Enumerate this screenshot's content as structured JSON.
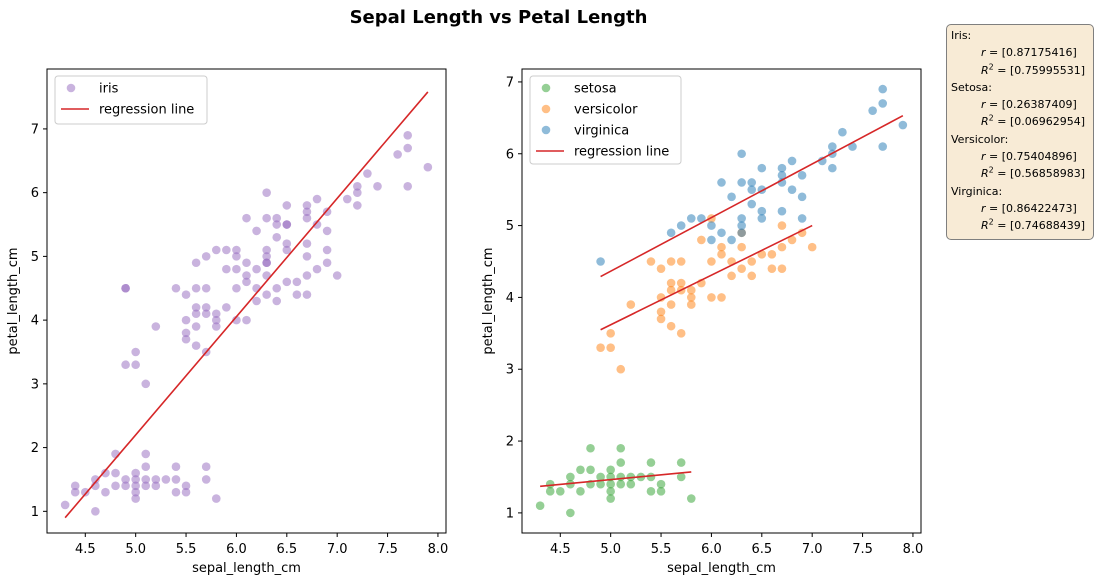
{
  "figure": {
    "title": "Sepal Length vs Petal Length"
  },
  "colors": {
    "iris": "#9467bd",
    "setosa": "#2ca02c",
    "versicolor": "#ff7f0e",
    "virginica": "#1f77b4",
    "regression": "#d62728",
    "stats_box_bg": "#f8ebd6"
  },
  "chart_data": [
    {
      "type": "scatter",
      "title": "",
      "xlabel": "sepal_length_cm",
      "ylabel": "petal_length_cm",
      "xlim": [
        4.12,
        8.08
      ],
      "ylim": [
        0.66,
        7.94
      ],
      "xticks": [
        "4.5",
        "5.0",
        "5.5",
        "6.0",
        "6.5",
        "7.0",
        "7.5",
        "8.0"
      ],
      "yticks": [
        "1",
        "2",
        "3",
        "4",
        "5",
        "6",
        "7"
      ],
      "legend_position": "upper-left",
      "legend": [
        "iris",
        "regression line"
      ],
      "series": [
        {
          "name": "iris",
          "color": "#9467bd",
          "points": [
            [
              4.3,
              1.1
            ],
            [
              4.4,
              1.3
            ],
            [
              4.4,
              1.4
            ],
            [
              4.5,
              1.3
            ],
            [
              4.6,
              1.0
            ],
            [
              4.6,
              1.4
            ],
            [
              4.6,
              1.5
            ],
            [
              4.7,
              1.3
            ],
            [
              4.7,
              1.6
            ],
            [
              4.8,
              1.4
            ],
            [
              4.8,
              1.6
            ],
            [
              4.8,
              1.9
            ],
            [
              4.9,
              1.4
            ],
            [
              4.9,
              1.5
            ],
            [
              5.0,
              1.2
            ],
            [
              5.0,
              1.3
            ],
            [
              5.0,
              1.4
            ],
            [
              5.0,
              1.5
            ],
            [
              5.0,
              1.6
            ],
            [
              5.1,
              1.4
            ],
            [
              5.1,
              1.5
            ],
            [
              5.1,
              1.7
            ],
            [
              5.1,
              1.9
            ],
            [
              5.2,
              1.4
            ],
            [
              5.2,
              1.5
            ],
            [
              5.3,
              1.5
            ],
            [
              5.4,
              1.3
            ],
            [
              5.4,
              1.5
            ],
            [
              5.4,
              1.7
            ],
            [
              5.5,
              1.3
            ],
            [
              5.5,
              1.4
            ],
            [
              5.7,
              1.5
            ],
            [
              5.7,
              1.7
            ],
            [
              5.8,
              1.2
            ],
            [
              4.9,
              3.3
            ],
            [
              4.9,
              4.5
            ],
            [
              5.0,
              3.3
            ],
            [
              5.0,
              3.5
            ],
            [
              5.1,
              3.0
            ],
            [
              5.2,
              3.9
            ],
            [
              5.4,
              4.5
            ],
            [
              5.5,
              3.7
            ],
            [
              5.5,
              3.8
            ],
            [
              5.5,
              4.0
            ],
            [
              5.5,
              4.4
            ],
            [
              5.6,
              3.6
            ],
            [
              5.6,
              3.9
            ],
            [
              5.6,
              4.1
            ],
            [
              5.6,
              4.2
            ],
            [
              5.6,
              4.5
            ],
            [
              5.7,
              3.5
            ],
            [
              5.7,
              4.1
            ],
            [
              5.7,
              4.2
            ],
            [
              5.7,
              4.5
            ],
            [
              5.8,
              3.9
            ],
            [
              5.8,
              4.0
            ],
            [
              5.8,
              4.1
            ],
            [
              5.9,
              4.2
            ],
            [
              5.9,
              4.8
            ],
            [
              6.0,
              4.0
            ],
            [
              6.0,
              4.5
            ],
            [
              6.0,
              5.1
            ],
            [
              6.1,
              4.0
            ],
            [
              6.1,
              4.6
            ],
            [
              6.1,
              4.7
            ],
            [
              6.2,
              4.3
            ],
            [
              6.2,
              4.5
            ],
            [
              6.3,
              4.4
            ],
            [
              6.3,
              4.7
            ],
            [
              6.3,
              4.9
            ],
            [
              6.4,
              4.3
            ],
            [
              6.4,
              4.5
            ],
            [
              6.5,
              4.6
            ],
            [
              6.6,
              4.4
            ],
            [
              6.6,
              4.6
            ],
            [
              6.7,
              4.4
            ],
            [
              6.7,
              4.7
            ],
            [
              6.7,
              5.0
            ],
            [
              6.8,
              4.8
            ],
            [
              6.9,
              4.9
            ],
            [
              7.0,
              4.7
            ],
            [
              4.9,
              4.5
            ],
            [
              5.6,
              4.9
            ],
            [
              5.7,
              5.0
            ],
            [
              5.8,
              5.1
            ],
            [
              5.9,
              5.1
            ],
            [
              6.0,
              4.8
            ],
            [
              6.0,
              5.0
            ],
            [
              6.1,
              4.9
            ],
            [
              6.1,
              5.6
            ],
            [
              6.2,
              4.8
            ],
            [
              6.2,
              5.4
            ],
            [
              6.3,
              4.9
            ],
            [
              6.3,
              5.0
            ],
            [
              6.3,
              5.1
            ],
            [
              6.3,
              5.6
            ],
            [
              6.3,
              6.0
            ],
            [
              6.4,
              5.3
            ],
            [
              6.4,
              5.5
            ],
            [
              6.4,
              5.6
            ],
            [
              6.5,
              5.1
            ],
            [
              6.5,
              5.2
            ],
            [
              6.5,
              5.5
            ],
            [
              6.5,
              5.8
            ],
            [
              6.7,
              5.2
            ],
            [
              6.7,
              5.6
            ],
            [
              6.7,
              5.7
            ],
            [
              6.7,
              5.8
            ],
            [
              6.8,
              5.5
            ],
            [
              6.8,
              5.9
            ],
            [
              6.9,
              5.1
            ],
            [
              6.9,
              5.4
            ],
            [
              6.9,
              5.7
            ],
            [
              7.1,
              5.9
            ],
            [
              7.2,
              5.8
            ],
            [
              7.2,
              6.0
            ],
            [
              7.2,
              6.1
            ],
            [
              7.3,
              6.3
            ],
            [
              7.4,
              6.1
            ],
            [
              7.6,
              6.6
            ],
            [
              7.7,
              6.1
            ],
            [
              7.7,
              6.7
            ],
            [
              7.7,
              6.9
            ],
            [
              7.9,
              6.4
            ],
            [
              6.5,
              5.5
            ]
          ]
        }
      ],
      "regression_lines": [
        {
          "name": "regression line",
          "color": "#d62728",
          "x": [
            4.3,
            7.9
          ],
          "y": [
            0.9,
            7.58
          ]
        }
      ]
    },
    {
      "type": "scatter",
      "title": "",
      "xlabel": "sepal_length_cm",
      "ylabel": "petal_length_cm",
      "xlim": [
        4.12,
        8.08
      ],
      "ylim": [
        0.72,
        7.18
      ],
      "xticks": [
        "4.5",
        "5.0",
        "5.5",
        "6.0",
        "6.5",
        "7.0",
        "7.5",
        "8.0"
      ],
      "yticks": [
        "1",
        "2",
        "3",
        "4",
        "5",
        "6",
        "7"
      ],
      "legend_position": "upper-left",
      "legend": [
        "setosa",
        "versicolor",
        "virginica",
        "regression line"
      ],
      "series": [
        {
          "name": "setosa",
          "color": "#2ca02c",
          "points": [
            [
              4.3,
              1.1
            ],
            [
              4.4,
              1.3
            ],
            [
              4.4,
              1.4
            ],
            [
              4.5,
              1.3
            ],
            [
              4.6,
              1.0
            ],
            [
              4.6,
              1.4
            ],
            [
              4.6,
              1.5
            ],
            [
              4.7,
              1.3
            ],
            [
              4.7,
              1.6
            ],
            [
              4.8,
              1.4
            ],
            [
              4.8,
              1.6
            ],
            [
              4.8,
              1.9
            ],
            [
              4.9,
              1.4
            ],
            [
              4.9,
              1.5
            ],
            [
              5.0,
              1.2
            ],
            [
              5.0,
              1.3
            ],
            [
              5.0,
              1.4
            ],
            [
              5.0,
              1.5
            ],
            [
              5.0,
              1.6
            ],
            [
              5.1,
              1.4
            ],
            [
              5.1,
              1.5
            ],
            [
              5.1,
              1.7
            ],
            [
              5.1,
              1.9
            ],
            [
              5.2,
              1.4
            ],
            [
              5.2,
              1.5
            ],
            [
              5.3,
              1.5
            ],
            [
              5.4,
              1.3
            ],
            [
              5.4,
              1.5
            ],
            [
              5.4,
              1.7
            ],
            [
              5.5,
              1.3
            ],
            [
              5.5,
              1.4
            ],
            [
              5.7,
              1.5
            ],
            [
              5.7,
              1.7
            ],
            [
              5.8,
              1.2
            ]
          ]
        },
        {
          "name": "versicolor",
          "color": "#ff7f0e",
          "points": [
            [
              4.9,
              3.3
            ],
            [
              5.0,
              3.3
            ],
            [
              5.0,
              3.5
            ],
            [
              5.1,
              3.0
            ],
            [
              5.2,
              3.9
            ],
            [
              5.4,
              4.5
            ],
            [
              5.5,
              3.7
            ],
            [
              5.5,
              3.8
            ],
            [
              5.5,
              4.0
            ],
            [
              5.5,
              4.4
            ],
            [
              5.6,
              3.6
            ],
            [
              5.6,
              3.9
            ],
            [
              5.6,
              4.1
            ],
            [
              5.6,
              4.2
            ],
            [
              5.6,
              4.5
            ],
            [
              5.7,
              3.5
            ],
            [
              5.7,
              4.1
            ],
            [
              5.7,
              4.2
            ],
            [
              5.7,
              4.5
            ],
            [
              5.8,
              3.9
            ],
            [
              5.8,
              4.0
            ],
            [
              5.8,
              4.1
            ],
            [
              5.9,
              4.2
            ],
            [
              5.9,
              4.8
            ],
            [
              6.0,
              4.0
            ],
            [
              6.0,
              4.5
            ],
            [
              6.0,
              5.1
            ],
            [
              6.1,
              4.0
            ],
            [
              6.1,
              4.6
            ],
            [
              6.1,
              4.7
            ],
            [
              6.2,
              4.3
            ],
            [
              6.2,
              4.5
            ],
            [
              6.3,
              4.4
            ],
            [
              6.3,
              4.7
            ],
            [
              6.3,
              4.9
            ],
            [
              6.4,
              4.3
            ],
            [
              6.4,
              4.5
            ],
            [
              6.5,
              4.6
            ],
            [
              6.6,
              4.4
            ],
            [
              6.6,
              4.6
            ],
            [
              6.7,
              4.4
            ],
            [
              6.7,
              4.7
            ],
            [
              6.7,
              5.0
            ],
            [
              6.8,
              4.8
            ],
            [
              6.9,
              4.9
            ],
            [
              7.0,
              4.7
            ]
          ]
        },
        {
          "name": "virginica",
          "color": "#1f77b4",
          "points": [
            [
              4.9,
              4.5
            ],
            [
              5.6,
              4.9
            ],
            [
              5.7,
              5.0
            ],
            [
              5.8,
              5.1
            ],
            [
              5.9,
              5.1
            ],
            [
              6.0,
              4.8
            ],
            [
              6.0,
              5.0
            ],
            [
              6.1,
              4.9
            ],
            [
              6.1,
              5.6
            ],
            [
              6.2,
              4.8
            ],
            [
              6.2,
              5.4
            ],
            [
              6.3,
              4.9
            ],
            [
              6.3,
              5.0
            ],
            [
              6.3,
              5.1
            ],
            [
              6.3,
              5.6
            ],
            [
              6.3,
              6.0
            ],
            [
              6.4,
              5.3
            ],
            [
              6.4,
              5.5
            ],
            [
              6.4,
              5.6
            ],
            [
              6.5,
              5.1
            ],
            [
              6.5,
              5.2
            ],
            [
              6.5,
              5.5
            ],
            [
              6.5,
              5.8
            ],
            [
              6.7,
              5.2
            ],
            [
              6.7,
              5.6
            ],
            [
              6.7,
              5.7
            ],
            [
              6.7,
              5.8
            ],
            [
              6.8,
              5.5
            ],
            [
              6.8,
              5.9
            ],
            [
              6.9,
              5.1
            ],
            [
              6.9,
              5.4
            ],
            [
              6.9,
              5.7
            ],
            [
              7.1,
              5.9
            ],
            [
              7.2,
              5.8
            ],
            [
              7.2,
              6.0
            ],
            [
              7.2,
              6.1
            ],
            [
              7.3,
              6.3
            ],
            [
              7.4,
              6.1
            ],
            [
              7.6,
              6.6
            ],
            [
              7.7,
              6.1
            ],
            [
              7.7,
              6.7
            ],
            [
              7.7,
              6.9
            ],
            [
              7.9,
              6.4
            ]
          ]
        }
      ],
      "regression_lines": [
        {
          "name": "regression line",
          "color": "#d62728",
          "x": [
            4.3,
            5.8
          ],
          "y": [
            1.37,
            1.57
          ]
        },
        {
          "name": "regression line",
          "color": "#d62728",
          "x": [
            4.9,
            7.0
          ],
          "y": [
            3.55,
            5.0
          ]
        },
        {
          "name": "regression line",
          "color": "#d62728",
          "x": [
            4.9,
            7.9
          ],
          "y": [
            4.29,
            6.53
          ]
        }
      ]
    }
  ],
  "stats_box": [
    {
      "name": "Iris:",
      "r": "[0.87175416]",
      "r2": "[0.75995531]"
    },
    {
      "name": "Setosa:",
      "r": "[0.26387409]",
      "r2": "[0.06962954]"
    },
    {
      "name": "Versicolor:",
      "r": "[0.75404896]",
      "r2": "[0.56858983]"
    },
    {
      "name": "Virginica:",
      "r": "[0.86422473]",
      "r2": "[0.74688439]"
    }
  ],
  "stats_labels": {
    "r": "r",
    "r2_base": "R",
    "r2_exp": "2",
    "equals": " = "
  }
}
